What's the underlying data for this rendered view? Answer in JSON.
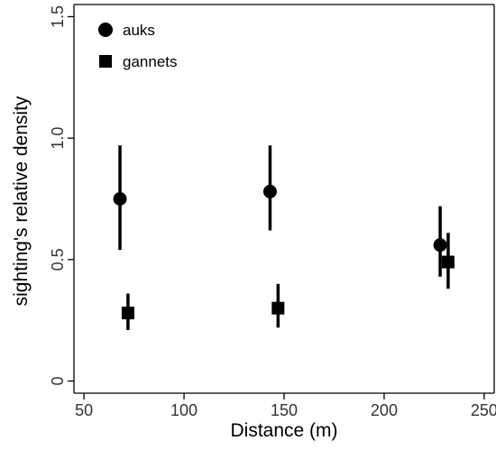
{
  "chart_data": {
    "type": "scatter",
    "xlabel": "Distance (m)",
    "ylabel": "sighting's relative density",
    "xlim": [
      45,
      255
    ],
    "ylim": [
      -0.05,
      1.55
    ],
    "xticks": [
      "50",
      "100",
      "150",
      "200",
      "250"
    ],
    "yticks": [
      "0",
      "0.5",
      "1.0",
      "1.5"
    ],
    "grid": false,
    "legend_position": "top-left",
    "series": [
      {
        "name": "auks",
        "marker": "circle",
        "color": "#000000",
        "x": [
          68,
          143,
          228
        ],
        "y": [
          0.75,
          0.78,
          0.56
        ],
        "lower": [
          0.54,
          0.62,
          0.43
        ],
        "upper": [
          0.97,
          0.97,
          0.72
        ]
      },
      {
        "name": "gannets",
        "marker": "square",
        "color": "#000000",
        "x": [
          72,
          147,
          232
        ],
        "y": [
          0.28,
          0.3,
          0.49
        ],
        "lower": [
          0.21,
          0.22,
          0.38
        ],
        "upper": [
          0.36,
          0.4,
          0.61
        ]
      }
    ]
  }
}
